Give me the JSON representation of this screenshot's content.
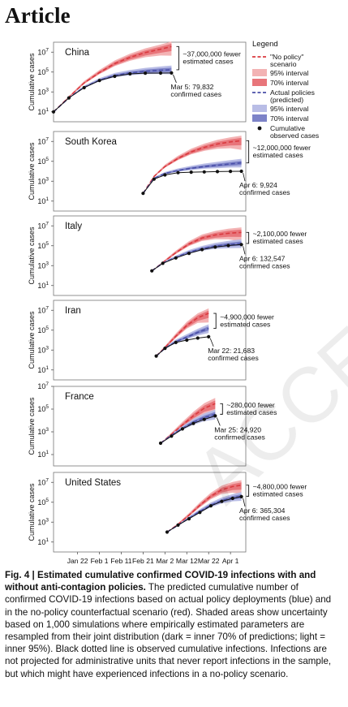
{
  "header": {
    "section": "Article"
  },
  "legend": {
    "title": "Legend",
    "items": [
      {
        "label": "\"No policy\"\nscenario",
        "kind": "dash",
        "color": "#d93a3f"
      },
      {
        "label": "95% interval",
        "kind": "box",
        "color": "#f3b3b4"
      },
      {
        "label": "70% interval",
        "kind": "box",
        "color": "#e8757a"
      },
      {
        "label": "Actual policies\n(predicted)",
        "kind": "dash",
        "color": "#4a4fa8"
      },
      {
        "label": "95% interval",
        "kind": "box",
        "color": "#b9bde6"
      },
      {
        "label": "70% interval",
        "kind": "box",
        "color": "#7d83c8"
      },
      {
        "label": "Cumulative\nobserved cases",
        "kind": "dot",
        "color": "#111111"
      }
    ]
  },
  "chart_data": [
    {
      "type": "line",
      "title": "China",
      "ylabel": "Cumulative cases",
      "yscale": "log",
      "ylim": [
        1,
        100000000
      ],
      "x": [
        "2020-01-11",
        "2020-01-18",
        "2020-01-25",
        "2020-02-01",
        "2020-02-08",
        "2020-02-15",
        "2020-02-22",
        "2020-02-29",
        "2020-03-05"
      ],
      "series": [
        {
          "name": "\"No policy\" scenario",
          "values": [
            10,
            300,
            8000,
            90000,
            700000,
            3000000,
            9000000,
            20000000,
            37000000
          ]
        },
        {
          "name": "Actual policies (predicted)",
          "values": [
            10,
            250,
            3000,
            15000,
            45000,
            80000,
            120000,
            150000,
            170000
          ]
        },
        {
          "name": "Cumulative observed cases",
          "values": [
            10,
            250,
            2700,
            14000,
            37000,
            66000,
            77000,
            79000,
            79832
          ]
        }
      ],
      "annotations": [
        "~37,000,000 fewer\nestimated cases",
        "Mar 5: 79,832\nconfirmed cases"
      ]
    },
    {
      "type": "line",
      "title": "South Korea",
      "ylabel": "Cumulative cases",
      "yscale": "log",
      "ylim": [
        1,
        100000000
      ],
      "x": [
        "2020-02-21",
        "2020-02-26",
        "2020-03-02",
        "2020-03-08",
        "2020-03-14",
        "2020-03-20",
        "2020-03-26",
        "2020-04-01",
        "2020-04-06"
      ],
      "series": [
        {
          "name": "\"No policy\" scenario",
          "values": [
            60,
            3000,
            30000,
            200000,
            900000,
            2500000,
            5500000,
            9000000,
            12000000
          ]
        },
        {
          "name": "Actual policies (predicted)",
          "values": [
            60,
            2000,
            6000,
            12000,
            20000,
            30000,
            40000,
            55000,
            70000
          ]
        },
        {
          "name": "Cumulative observed cases",
          "values": [
            60,
            1600,
            4300,
            7300,
            8100,
            8650,
            9200,
            9800,
            9924
          ]
        }
      ],
      "annotations": [
        "~12,000,000 fewer\nestimated cases",
        "Apr 6: 9,924\nconfirmed cases"
      ]
    },
    {
      "type": "line",
      "title": "Italy",
      "ylabel": "Cumulative cases",
      "yscale": "log",
      "ylim": [
        1,
        100000000
      ],
      "x": [
        "2020-02-25",
        "2020-03-01",
        "2020-03-07",
        "2020-03-13",
        "2020-03-19",
        "2020-03-25",
        "2020-03-31",
        "2020-04-06"
      ],
      "series": [
        {
          "name": "\"No policy\" scenario",
          "values": [
            300,
            2000,
            20000,
            150000,
            600000,
            1200000,
            1800000,
            2200000
          ]
        },
        {
          "name": "Actual policies (predicted)",
          "values": [
            300,
            1800,
            7000,
            22000,
            50000,
            90000,
            130000,
            170000
          ]
        },
        {
          "name": "Cumulative observed cases",
          "values": [
            300,
            1700,
            5900,
            17000,
            41000,
            74000,
            105000,
            132547
          ]
        }
      ],
      "annotations": [
        "~2,100,000 fewer\nestimated cases",
        "Apr 6: 132,547\nconfirmed cases"
      ]
    },
    {
      "type": "line",
      "title": "Iran",
      "ylabel": "Cumulative cases",
      "yscale": "log",
      "ylim": [
        1,
        100000000
      ],
      "x": [
        "2020-02-27",
        "2020-03-02",
        "2020-03-07",
        "2020-03-12",
        "2020-03-17",
        "2020-03-22"
      ],
      "series": [
        {
          "name": "\"No policy\" scenario",
          "values": [
            250,
            1800,
            25000,
            300000,
            1800000,
            4900000
          ]
        },
        {
          "name": "Actual policies (predicted)",
          "values": [
            250,
            1500,
            7000,
            20000,
            60000,
            150000
          ]
        },
        {
          "name": "Cumulative observed cases",
          "values": [
            250,
            1500,
            5800,
            10000,
            16000,
            21683
          ]
        }
      ],
      "annotations": [
        "~4,900,000 fewer\nestimated cases",
        "Mar 22: 21,683\nconfirmed cases"
      ]
    },
    {
      "type": "line",
      "title": "France",
      "ylabel": "Cumulative cases",
      "yscale": "log",
      "ylim": [
        1,
        10000000
      ],
      "x": [
        "2020-02-29",
        "2020-03-05",
        "2020-03-10",
        "2020-03-15",
        "2020-03-20",
        "2020-03-25"
      ],
      "series": [
        {
          "name": "\"No policy\" scenario",
          "values": [
            100,
            600,
            4000,
            25000,
            120000,
            300000
          ]
        },
        {
          "name": "Actual policies (predicted)",
          "values": [
            100,
            500,
            2000,
            7000,
            18000,
            35000
          ]
        },
        {
          "name": "Cumulative observed cases",
          "values": [
            100,
            420,
            1800,
            5400,
            12600,
            24920
          ]
        }
      ],
      "annotations": [
        "~280,000 fewer\nestimated cases",
        "Mar 25: 24,920\nconfirmed cases"
      ]
    },
    {
      "type": "line",
      "title": "United States",
      "ylabel": "Cumulative cases",
      "yscale": "log",
      "ylim": [
        1,
        100000000
      ],
      "x": [
        "2020-03-03",
        "2020-03-08",
        "2020-03-13",
        "2020-03-18",
        "2020-03-23",
        "2020-03-28",
        "2020-04-02",
        "2020-04-06"
      ],
      "series": [
        {
          "name": "\"No policy\" scenario",
          "values": [
            100,
            600,
            5000,
            50000,
            400000,
            1800000,
            3800000,
            5200000
          ]
        },
        {
          "name": "Actual policies (predicted)",
          "values": [
            100,
            500,
            2500,
            12000,
            50000,
            140000,
            280000,
            400000
          ]
        },
        {
          "name": "Cumulative observed cases",
          "values": [
            100,
            500,
            2200,
            9400,
            43000,
            121000,
            245000,
            365304
          ]
        }
      ],
      "annotations": [
        "~4,800,000 fewer\nestimated cases",
        "Apr 6: 365,304\nconfirmed cases"
      ]
    }
  ],
  "x_axis": {
    "tick_labels": [
      "Jan 22",
      "Feb 1",
      "Feb 11",
      "Feb 21",
      "Mar 2",
      "Mar 12",
      "Mar 22",
      "Apr 1"
    ],
    "start": "2020-01-11",
    "end": "2020-04-08"
  },
  "caption": {
    "lead": "Fig. 4 | Estimated cumulative confirmed COVID-19 infections with and without anti-contagion policies.",
    "body": " The predicted cumulative number of confirmed COVID-19 infections based on actual policy deployments (blue) and in the no-policy counterfactual scenario (red). Shaded areas show uncertainty based on 1,000 simulations where empirically estimated parameters are resampled from their joint distribution (dark = inner 70% of predictions; light = inner 95%). Black dotted line is observed cumulative infections. Infections are not projected for administrative units that never report infections in the sample, but which might have experienced infections in a no-policy scenario."
  },
  "watermark": "ACCELERATED"
}
